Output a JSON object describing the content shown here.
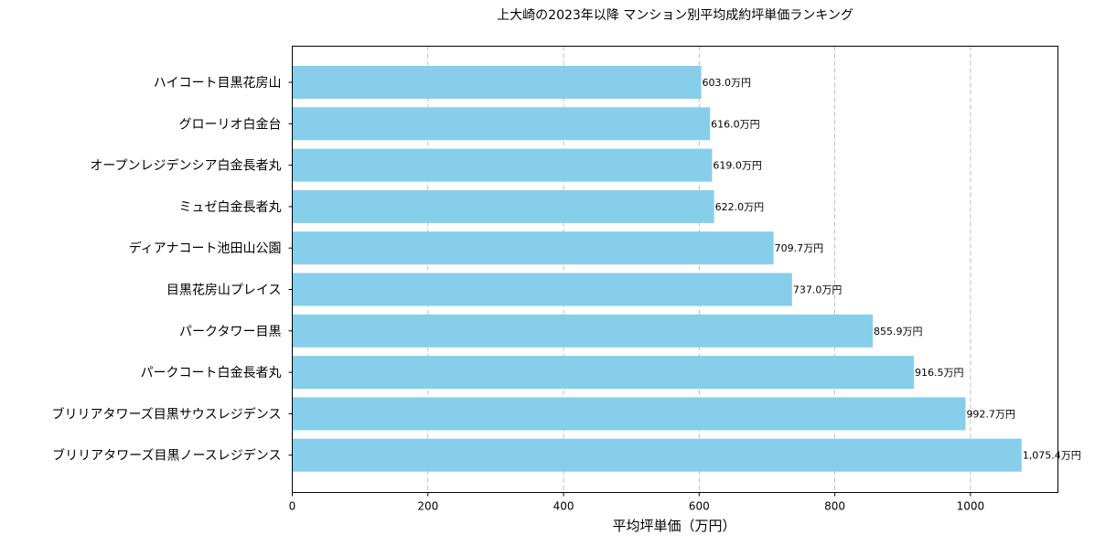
{
  "chart_data": {
    "type": "bar",
    "orientation": "horizontal",
    "title": "上大崎の2023年以降 マンション別平均成約坪単価ランキング",
    "xlabel": "平均坪単価（万円）",
    "ylabel": "",
    "xlim": [
      0,
      1129
    ],
    "xticks": [
      0,
      200,
      400,
      600,
      800,
      1000
    ],
    "grid": "x-dashed",
    "bar_color": "#87CEEB",
    "categories": [
      "ハイコート目黒花房山",
      "グローリオ白金台",
      "オープンレジデンシア白金長者丸",
      "ミュゼ白金長者丸",
      "ディアナコート池田山公園",
      "目黒花房山プレイス",
      "パークタワー目黒",
      "パークコート白金長者丸",
      "ブリリアタワーズ目黒サウスレジデンス",
      "ブリリアタワーズ目黒ノースレジデンス"
    ],
    "values": [
      603.0,
      616.0,
      619.0,
      622.0,
      709.7,
      737.0,
      855.9,
      916.5,
      992.7,
      1075.4
    ],
    "data_labels": [
      "603.0万円",
      "616.0万円",
      "619.0万円",
      "622.0万円",
      "709.7万円",
      "737.0万円",
      "855.9万円",
      "916.5万円",
      "992.7万円",
      "1,075.4万円"
    ]
  }
}
